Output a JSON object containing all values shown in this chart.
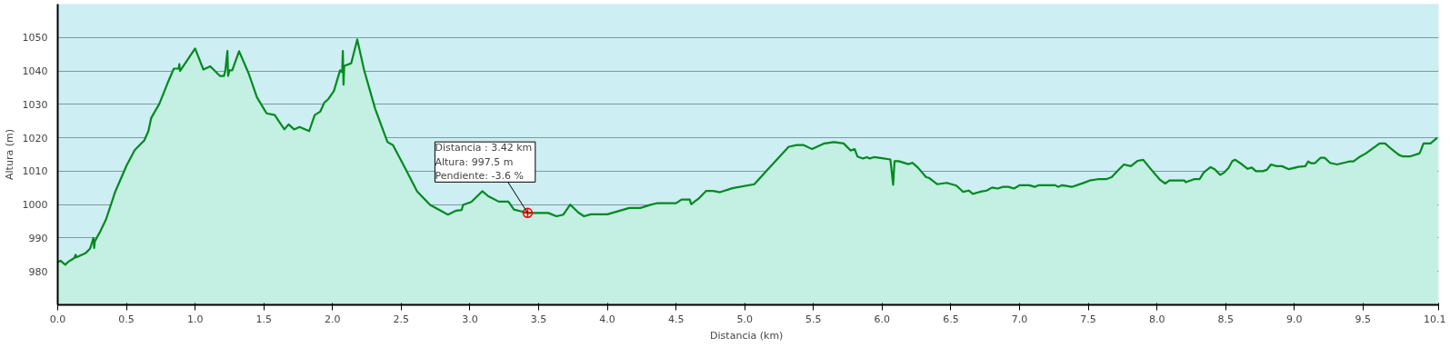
{
  "chart_data": {
    "type": "area",
    "xlabel": "Distancia  (km)",
    "ylabel": "Altura (m)",
    "xlim": [
      0,
      10.05
    ],
    "ylim": [
      970,
      1060
    ],
    "xticks": [
      {
        "value": 0,
        "label": "0.0"
      },
      {
        "value": 0.5,
        "label": "0.5"
      },
      {
        "value": 1,
        "label": "1.0"
      },
      {
        "value": 1.5,
        "label": "1.5"
      },
      {
        "value": 2,
        "label": "2.0"
      },
      {
        "value": 2.5,
        "label": "2.5"
      },
      {
        "value": 3,
        "label": "3.0"
      },
      {
        "value": 3.5,
        "label": "3.5"
      },
      {
        "value": 4,
        "label": "4.0"
      },
      {
        "value": 4.5,
        "label": "4.5"
      },
      {
        "value": 5,
        "label": "5.0"
      },
      {
        "value": 5.5,
        "label": "5.5"
      },
      {
        "value": 6,
        "label": "6.0"
      },
      {
        "value": 6.5,
        "label": "6.5"
      },
      {
        "value": 7,
        "label": "7.0"
      },
      {
        "value": 7.5,
        "label": "7.5"
      },
      {
        "value": 8,
        "label": "8.0"
      },
      {
        "value": 8.5,
        "label": "8.5"
      },
      {
        "value": 9,
        "label": "9.0"
      },
      {
        "value": 9.5,
        "label": "9.5"
      },
      {
        "value": 10.05,
        "label": "10.1"
      }
    ],
    "yticks": [
      980,
      990,
      1000,
      1010,
      1020,
      1030,
      1040,
      1050
    ],
    "grid": "y",
    "annotations": [
      {
        "text": "Distancia  : 3.42 km\nAltura: 997.5 m\nPendiente: -3.6 %",
        "x": 3.42,
        "y": 997.5
      }
    ],
    "series": [
      {
        "color": "#008a1e",
        "x": [
          0,
          0.02,
          0.055,
          0.074,
          0.12,
          0.13,
          0.135,
          0.2,
          0.235,
          0.26,
          0.265,
          0.27,
          0.31,
          0.35,
          0.42,
          0.5,
          0.56,
          0.63,
          0.66,
          0.68,
          0.74,
          0.8,
          0.845,
          0.88,
          0.885,
          0.89,
          1.0,
          1.06,
          1.11,
          1.18,
          1.21,
          1.22,
          1.235,
          1.24,
          1.25,
          1.27,
          1.32,
          1.39,
          1.45,
          1.52,
          1.58,
          1.61,
          1.65,
          1.68,
          1.72,
          1.76,
          1.83,
          1.87,
          1.91,
          1.94,
          1.97,
          2.01,
          2.055,
          2.07,
          2.075,
          2.08,
          2.085,
          2.09,
          2.136,
          2.18,
          2.23,
          2.31,
          2.4,
          2.44,
          2.53,
          2.615,
          2.71,
          2.84,
          2.9,
          2.94,
          2.95,
          3.01,
          3.09,
          3.134,
          3.21,
          3.28,
          3.32,
          3.37,
          3.42,
          3.5,
          3.57,
          3.63,
          3.68,
          3.73,
          3.79,
          3.83,
          3.88,
          4.0,
          4.16,
          4.24,
          4.32,
          4.36,
          4.5,
          4.54,
          4.6,
          4.61,
          4.67,
          4.72,
          4.77,
          4.82,
          4.91,
          5.07,
          5.16,
          5.32,
          5.38,
          5.43,
          5.49,
          5.58,
          5.65,
          5.72,
          5.77,
          5.8,
          5.82,
          5.86,
          5.89,
          5.91,
          5.94,
          6.0,
          6.06,
          6.08,
          6.09,
          6.12,
          6.19,
          6.22,
          6.26,
          6.32,
          6.34,
          6.4,
          6.47,
          6.54,
          6.59,
          6.63,
          6.66,
          6.71,
          6.76,
          6.8,
          6.84,
          6.88,
          6.92,
          6.96,
          7.0,
          7.07,
          7.11,
          7.14,
          7.26,
          7.28,
          7.31,
          7.38,
          7.46,
          7.51,
          7.57,
          7.63,
          7.67,
          7.72,
          7.76,
          7.81,
          7.86,
          7.9,
          7.95,
          8.02,
          8.06,
          8.09,
          8.2,
          8.21,
          8.27,
          8.31,
          8.34,
          8.39,
          8.42,
          8.46,
          8.49,
          8.52,
          8.55,
          8.57,
          8.62,
          8.66,
          8.69,
          8.72,
          8.77,
          8.8,
          8.83,
          8.87,
          8.91,
          8.96,
          9.03,
          9.08,
          9.1,
          9.12,
          9.15,
          9.19,
          9.22,
          9.26,
          9.31,
          9.4,
          9.43,
          9.48,
          9.52,
          9.62,
          9.66,
          9.71,
          9.76,
          9.79,
          9.84,
          9.91,
          9.92,
          9.94,
          9.99,
          10.04
        ],
        "values": [
          982.8,
          983.2,
          982,
          982.8,
          984,
          985,
          984.2,
          985.4,
          986.8,
          990,
          987,
          989,
          992,
          995.4,
          1004,
          1011.6,
          1016.3,
          1019.2,
          1022,
          1025.9,
          1030.2,
          1036.4,
          1040.7,
          1040.7,
          1042,
          1040,
          1046.7,
          1040.4,
          1041.4,
          1038.5,
          1038.5,
          1040.2,
          1046,
          1038.5,
          1040.2,
          1040.2,
          1045.9,
          1039.2,
          1032.1,
          1027.3,
          1026.8,
          1024.9,
          1022.5,
          1024,
          1022.5,
          1023.2,
          1022,
          1026.8,
          1027.8,
          1030.5,
          1031.6,
          1034,
          1040.2,
          1039.6,
          1046,
          1035.9,
          1041.4,
          1041.6,
          1042.3,
          1049.4,
          1040.2,
          1028.7,
          1018.7,
          1017.8,
          1010.8,
          1004,
          999.9,
          997,
          998.2,
          998.4,
          999.9,
          1000.8,
          1004,
          1002.5,
          1000.9,
          1000.9,
          998.5,
          998,
          997.5,
          997.5,
          997.5,
          996.5,
          997,
          1000,
          997.6,
          996.5,
          997.1,
          997.1,
          999,
          999,
          1000,
          1000.4,
          1000.4,
          1001.5,
          1001.5,
          1000.1,
          1002,
          1004.1,
          1004.1,
          1003.7,
          1004.9,
          1006.1,
          1010.2,
          1017.3,
          1017.8,
          1017.8,
          1016.6,
          1018.3,
          1018.7,
          1018.3,
          1016.2,
          1016.6,
          1014.4,
          1013.8,
          1014.2,
          1013.8,
          1014.2,
          1013.9,
          1013.5,
          1005.9,
          1013,
          1013,
          1012.1,
          1012.5,
          1011.1,
          1008.2,
          1008,
          1006.1,
          1006.5,
          1005.7,
          1003.8,
          1004.2,
          1003.2,
          1003.8,
          1004.2,
          1005.1,
          1004.8,
          1005.3,
          1005.3,
          1004.8,
          1005.8,
          1005.8,
          1005.3,
          1005.8,
          1005.8,
          1005.3,
          1005.8,
          1005.3,
          1006.4,
          1007.2,
          1007.6,
          1007.6,
          1008.2,
          1010.4,
          1012,
          1011.5,
          1013.1,
          1013.4,
          1010.9,
          1007.5,
          1006.3,
          1007.2,
          1007.2,
          1006.7,
          1007.6,
          1007.6,
          1009.6,
          1011.2,
          1010.6,
          1008.9,
          1009.6,
          1010.9,
          1013.1,
          1013.4,
          1012,
          1010.7,
          1011.1,
          1010,
          1010,
          1010.4,
          1012,
          1011.5,
          1011.5,
          1010.6,
          1011.3,
          1011.5,
          1012.9,
          1012.4,
          1012.4,
          1014,
          1014,
          1012.5,
          1012,
          1012.9,
          1012.9,
          1014.4,
          1015.3,
          1018.3,
          1018.3,
          1016.5,
          1014.9,
          1014.4,
          1014.4,
          1015.3,
          1016.2,
          1018.3,
          1018.3,
          1020
        ]
      }
    ]
  }
}
